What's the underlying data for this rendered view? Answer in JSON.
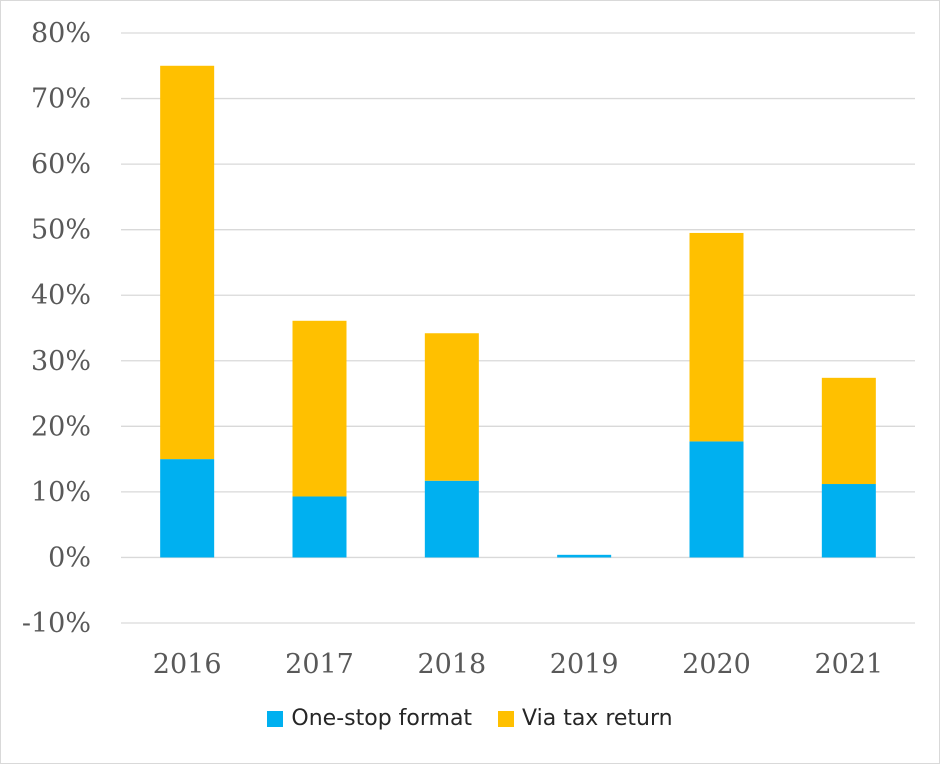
{
  "chart_data": {
    "type": "bar",
    "stacked": true,
    "categories": [
      "2016",
      "2017",
      "2018",
      "2019",
      "2020",
      "2021"
    ],
    "series": [
      {
        "name": "One-stop format",
        "color": "#00b0f0",
        "values": [
          15,
          9.3,
          11.7,
          0.4,
          17.7,
          11.2
        ]
      },
      {
        "name": "Via tax return",
        "color": "#ffc000",
        "values": [
          60,
          26.8,
          22.5,
          0,
          31.8,
          16.2
        ]
      }
    ],
    "y_ticks": [
      "-10%",
      "0%",
      "10%",
      "20%",
      "30%",
      "40%",
      "50%",
      "60%",
      "70%",
      "80%"
    ],
    "ylim": [
      -10,
      80
    ],
    "y_unit": "%",
    "grid": true,
    "legend_position": "bottom"
  }
}
